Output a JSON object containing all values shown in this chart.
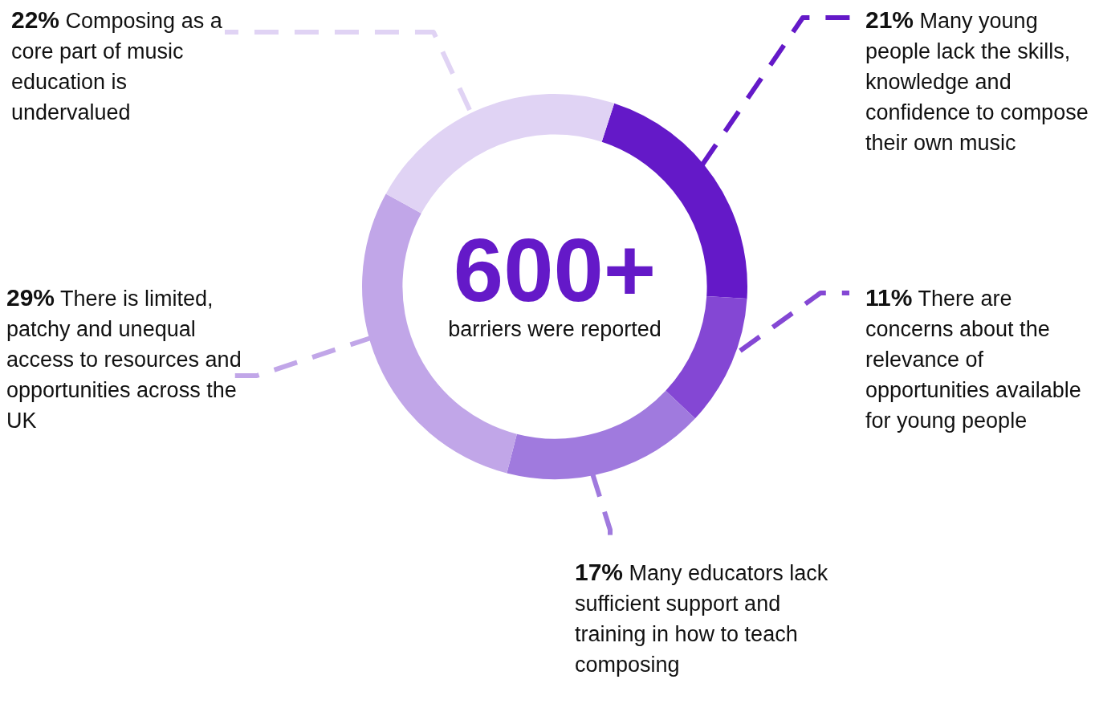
{
  "chart_data": {
    "type": "donut",
    "categories": [
      "Many young people lack the skills, knowledge and confidence to compose their own music",
      "There are concerns about the relevance of opportunities available for young people",
      "Many educators lack sufficient support and training in how to teach composing",
      "There is limited, patchy and unequal access to resources and opportunities across the UK",
      "Composing as a core part of music education is undervalued"
    ],
    "values": [
      21,
      11,
      17,
      29,
      22
    ],
    "value_labels": [
      "21%",
      "11%",
      "17%",
      "29%",
      "22%"
    ],
    "colors": [
      "#6419c8",
      "#8447d4",
      "#a07ade",
      "#c1a6e8",
      "#e0d3f4"
    ],
    "annotations": [
      "600+",
      "barriers were reported"
    ]
  }
}
